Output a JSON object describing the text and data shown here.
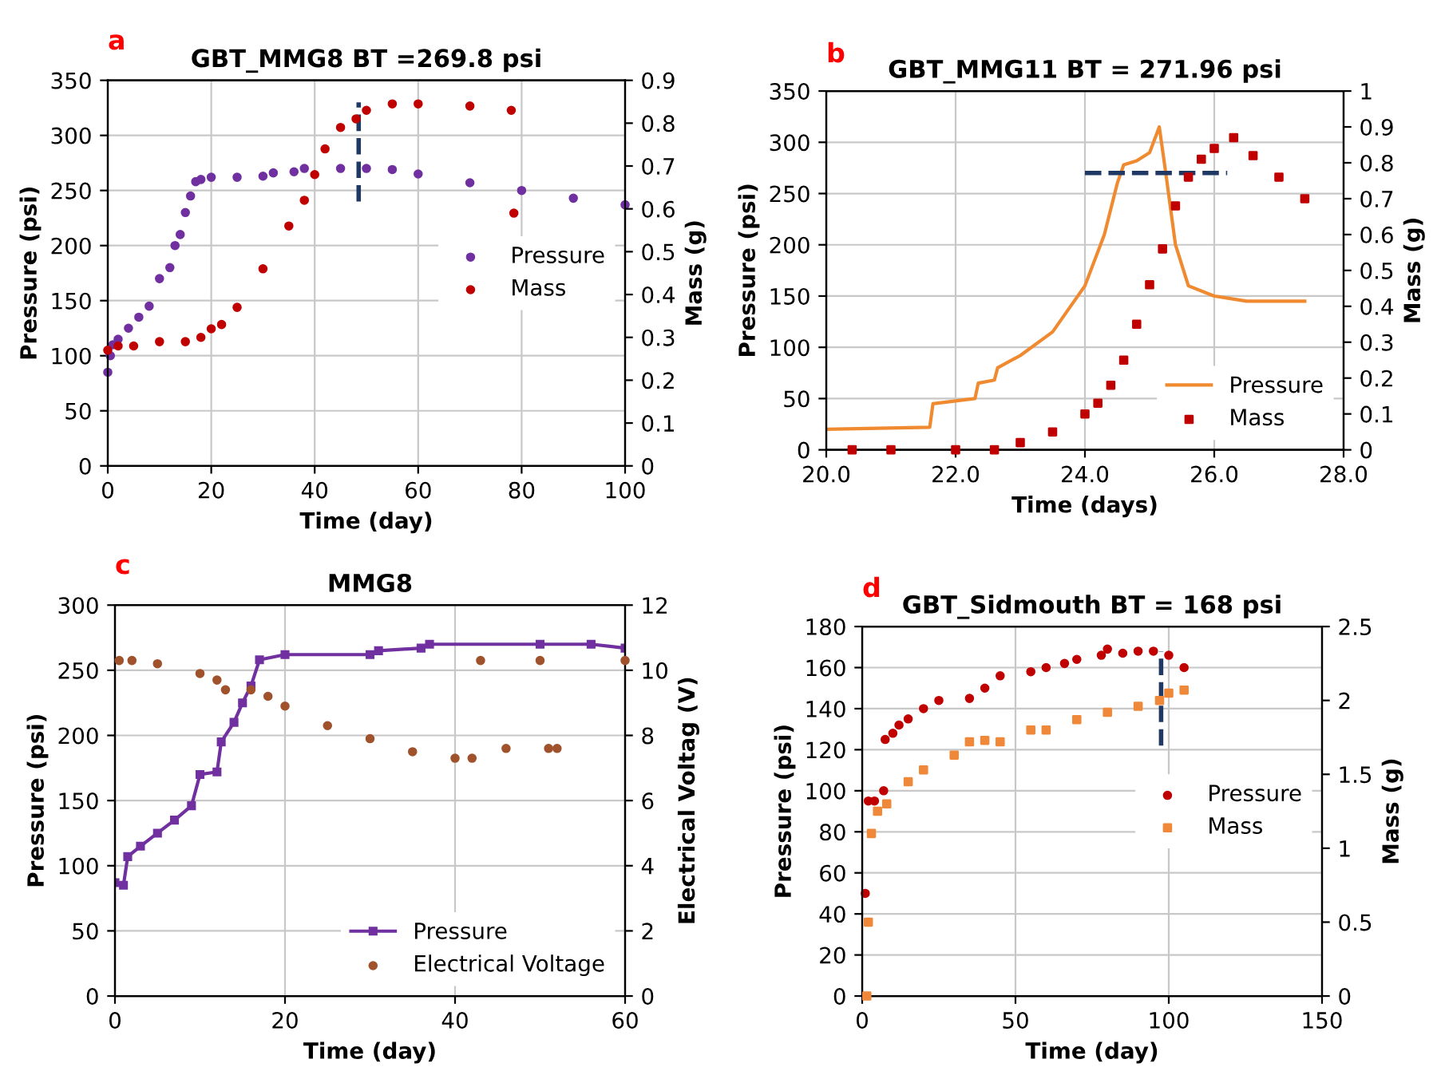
{
  "chart_data": [
    {
      "type": "scatter",
      "title": "GBT_MMG8 BT =269.8 psi",
      "annotations": [
        "a"
      ],
      "xlabel": "Time (day)",
      "ylabel": "Pressure (psi)",
      "y2label": "Mass (g)",
      "xlim": [
        0,
        100
      ],
      "xticks": [
        0,
        20,
        40,
        60,
        80,
        100
      ],
      "ylim": [
        0,
        350
      ],
      "yticks": [
        0,
        50,
        100,
        150,
        200,
        250,
        300,
        350
      ],
      "y2lim": [
        0,
        0.9
      ],
      "y2ticks": [
        0,
        0.1,
        0.2,
        0.3,
        0.4,
        0.5,
        0.6,
        0.7,
        0.8,
        0.9
      ],
      "grid": true,
      "legend": "right",
      "series": [
        {
          "name": "Pressure",
          "marker": "circle",
          "color": "#7030a0",
          "x": [
            0,
            0.5,
            1,
            2,
            4,
            6,
            8,
            10,
            12,
            13,
            14,
            15,
            16,
            17,
            18,
            20,
            25,
            30,
            32,
            36,
            38,
            45,
            50,
            55,
            60,
            70,
            80,
            90,
            100
          ],
          "values": [
            85,
            100,
            110,
            115,
            125,
            135,
            145,
            170,
            180,
            200,
            210,
            230,
            245,
            258,
            260,
            262,
            262,
            263,
            266,
            267,
            270,
            270,
            270,
            269,
            265,
            257,
            250,
            243,
            237
          ]
        },
        {
          "name": "Mass",
          "marker": "circle",
          "color": "#c00000",
          "axis": "y2",
          "x": [
            0,
            2,
            5,
            10,
            15,
            18,
            20,
            22,
            25,
            30,
            35,
            38,
            40,
            42,
            45,
            48,
            50,
            55,
            60,
            70,
            78,
            78.5
          ],
          "values": [
            0.27,
            0.28,
            0.28,
            0.29,
            0.29,
            0.3,
            0.32,
            0.33,
            0.37,
            0.46,
            0.56,
            0.62,
            0.68,
            0.74,
            0.79,
            0.81,
            0.83,
            0.845,
            0.845,
            0.84,
            0.83,
            0.59
          ]
        },
        {
          "type": "line",
          "line_style": "dashed",
          "color": "#1f3864",
          "x": [
            48.5,
            48.5
          ],
          "values": [
            240,
            330
          ]
        }
      ]
    },
    {
      "type": "scatter",
      "title": "GBT_MMG11 BT = 271.96 psi",
      "annotations": [
        "b"
      ],
      "xlabel": "Time (days)",
      "ylabel": "Pressure (psi)",
      "y2label": "Mass (g)",
      "xlim": [
        20,
        28
      ],
      "xticks": [
        {
          "value": 20,
          "label": "20.0"
        },
        {
          "value": 22,
          "label": "22.0"
        },
        {
          "value": 24,
          "label": "24.0"
        },
        {
          "value": 26,
          "label": "26.0"
        },
        {
          "value": 28,
          "label": "28.0"
        }
      ],
      "ylim": [
        0,
        350
      ],
      "yticks": [
        0,
        50,
        100,
        150,
        200,
        250,
        300,
        350
      ],
      "y2lim": [
        0,
        1
      ],
      "y2ticks": [
        0,
        0.1,
        0.2,
        0.3,
        0.4,
        0.5,
        0.6,
        0.7,
        0.8,
        0.9,
        1
      ],
      "grid": true,
      "legend": "bottom right",
      "series": [
        {
          "name": "Pressure",
          "type": "line",
          "color": "#f08a30",
          "x": [
            20,
            21.6,
            21.65,
            22.3,
            22.35,
            22.6,
            22.65,
            23,
            23.5,
            24,
            24.3,
            24.5,
            24.6,
            24.8,
            25,
            25.15,
            25.25,
            25.4,
            25.6,
            26,
            26.5,
            27,
            27.4
          ],
          "values": [
            20,
            22,
            45,
            50,
            65,
            68,
            80,
            92,
            115,
            160,
            210,
            260,
            278,
            282,
            290,
            315,
            270,
            200,
            160,
            150,
            145,
            145,
            145
          ]
        },
        {
          "name": "Mass",
          "marker": "square",
          "color": "#c00000",
          "axis": "y2",
          "x": [
            20.4,
            21,
            22,
            22.6,
            23,
            23.5,
            24,
            24.2,
            24.4,
            24.6,
            24.8,
            25,
            25.2,
            25.4,
            25.6,
            25.8,
            26,
            26.3,
            26.6,
            27,
            27.4
          ],
          "values": [
            0,
            0,
            0,
            0,
            0.02,
            0.05,
            0.1,
            0.13,
            0.18,
            0.25,
            0.35,
            0.46,
            0.56,
            0.68,
            0.76,
            0.81,
            0.84,
            0.87,
            0.82,
            0.76,
            0.7
          ]
        },
        {
          "type": "line",
          "line_style": "dashed",
          "color": "#1f3864",
          "x": [
            24,
            26.2
          ],
          "values": [
            270,
            270
          ]
        }
      ]
    },
    {
      "type": "scatter",
      "title": "MMG8",
      "annotations": [
        "c"
      ],
      "xlabel": "Time (day)",
      "ylabel": "Pressure (psi)",
      "y2label": "Electrical Voltag (V)",
      "xlim": [
        0,
        60
      ],
      "xticks": [
        0,
        20,
        40,
        60
      ],
      "ylim": [
        0,
        300
      ],
      "yticks": [
        0,
        50,
        100,
        150,
        200,
        250,
        300
      ],
      "y2lim": [
        0,
        12
      ],
      "y2ticks": [
        0,
        2,
        4,
        6,
        8,
        10,
        12
      ],
      "grid": true,
      "legend": "bottom right",
      "series": [
        {
          "name": "Pressure",
          "type": "line",
          "marker": "square",
          "color": "#7030a0",
          "x": [
            0,
            1,
            1.5,
            3,
            5,
            7,
            9,
            10,
            12,
            12.5,
            14,
            15,
            16,
            17,
            20,
            30,
            31,
            36,
            37,
            50,
            56,
            60
          ],
          "values": [
            87,
            85,
            107,
            115,
            125,
            135,
            146,
            170,
            172,
            195,
            210,
            225,
            238,
            258,
            262,
            262,
            265,
            267,
            270,
            270,
            270,
            267
          ]
        },
        {
          "name": "Electrical Voltage",
          "marker": "circle",
          "color": "#a0522d",
          "axis": "y2",
          "x": [
            0.5,
            2,
            5,
            10,
            12,
            13,
            16,
            18,
            20,
            25,
            30,
            35,
            40,
            42,
            43,
            46,
            50,
            51,
            52,
            60
          ],
          "values": [
            10.3,
            10.3,
            10.2,
            9.9,
            9.7,
            9.4,
            9.4,
            9.2,
            8.9,
            8.3,
            7.9,
            7.5,
            7.3,
            7.3,
            10.3,
            7.6,
            10.3,
            7.6,
            7.6,
            10.3
          ]
        }
      ]
    },
    {
      "type": "scatter",
      "title": "GBT_Sidmouth BT = 168 psi",
      "annotations": [
        "d"
      ],
      "xlabel": "Time (day)",
      "ylabel": "Pressure (psi)",
      "y2label": "Mass (g)",
      "xlim": [
        0,
        150
      ],
      "xticks": [
        0,
        50,
        100,
        150
      ],
      "ylim": [
        0,
        180
      ],
      "yticks": [
        0,
        20,
        40,
        60,
        80,
        100,
        120,
        140,
        160,
        180
      ],
      "y2lim": [
        0,
        2.5
      ],
      "y2ticks": [
        0,
        0.5,
        1,
        1.5,
        2,
        2.5
      ],
      "grid": true,
      "legend": "right",
      "series": [
        {
          "name": "Pressure",
          "marker": "circle",
          "color": "#c00000",
          "x": [
            1,
            2,
            4,
            7,
            7.5,
            10,
            12,
            15,
            20,
            25,
            35,
            40,
            45,
            55,
            60,
            66,
            70,
            78,
            80,
            85,
            90,
            95,
            100,
            105
          ],
          "values": [
            50,
            95,
            95,
            100,
            125,
            128,
            132,
            135,
            140,
            144,
            145,
            150,
            156,
            158,
            160,
            162,
            164,
            166,
            169,
            167,
            168,
            168,
            166,
            160
          ]
        },
        {
          "name": "Mass",
          "marker": "square",
          "color": "#f0883a",
          "axis": "y2",
          "x": [
            1.5,
            2,
            3,
            5,
            8,
            15,
            20,
            30,
            35,
            40,
            45,
            55,
            60,
            70,
            80,
            90,
            97,
            100,
            105
          ],
          "values": [
            0,
            0.5,
            1.1,
            1.25,
            1.3,
            1.45,
            1.53,
            1.63,
            1.72,
            1.73,
            1.72,
            1.8,
            1.8,
            1.87,
            1.92,
            1.96,
            2.0,
            2.05,
            2.07
          ]
        },
        {
          "type": "line",
          "line_style": "dashed",
          "color": "#1f3864",
          "x": [
            97.5,
            97.5
          ],
          "values": [
            122,
            168
          ]
        }
      ]
    }
  ]
}
